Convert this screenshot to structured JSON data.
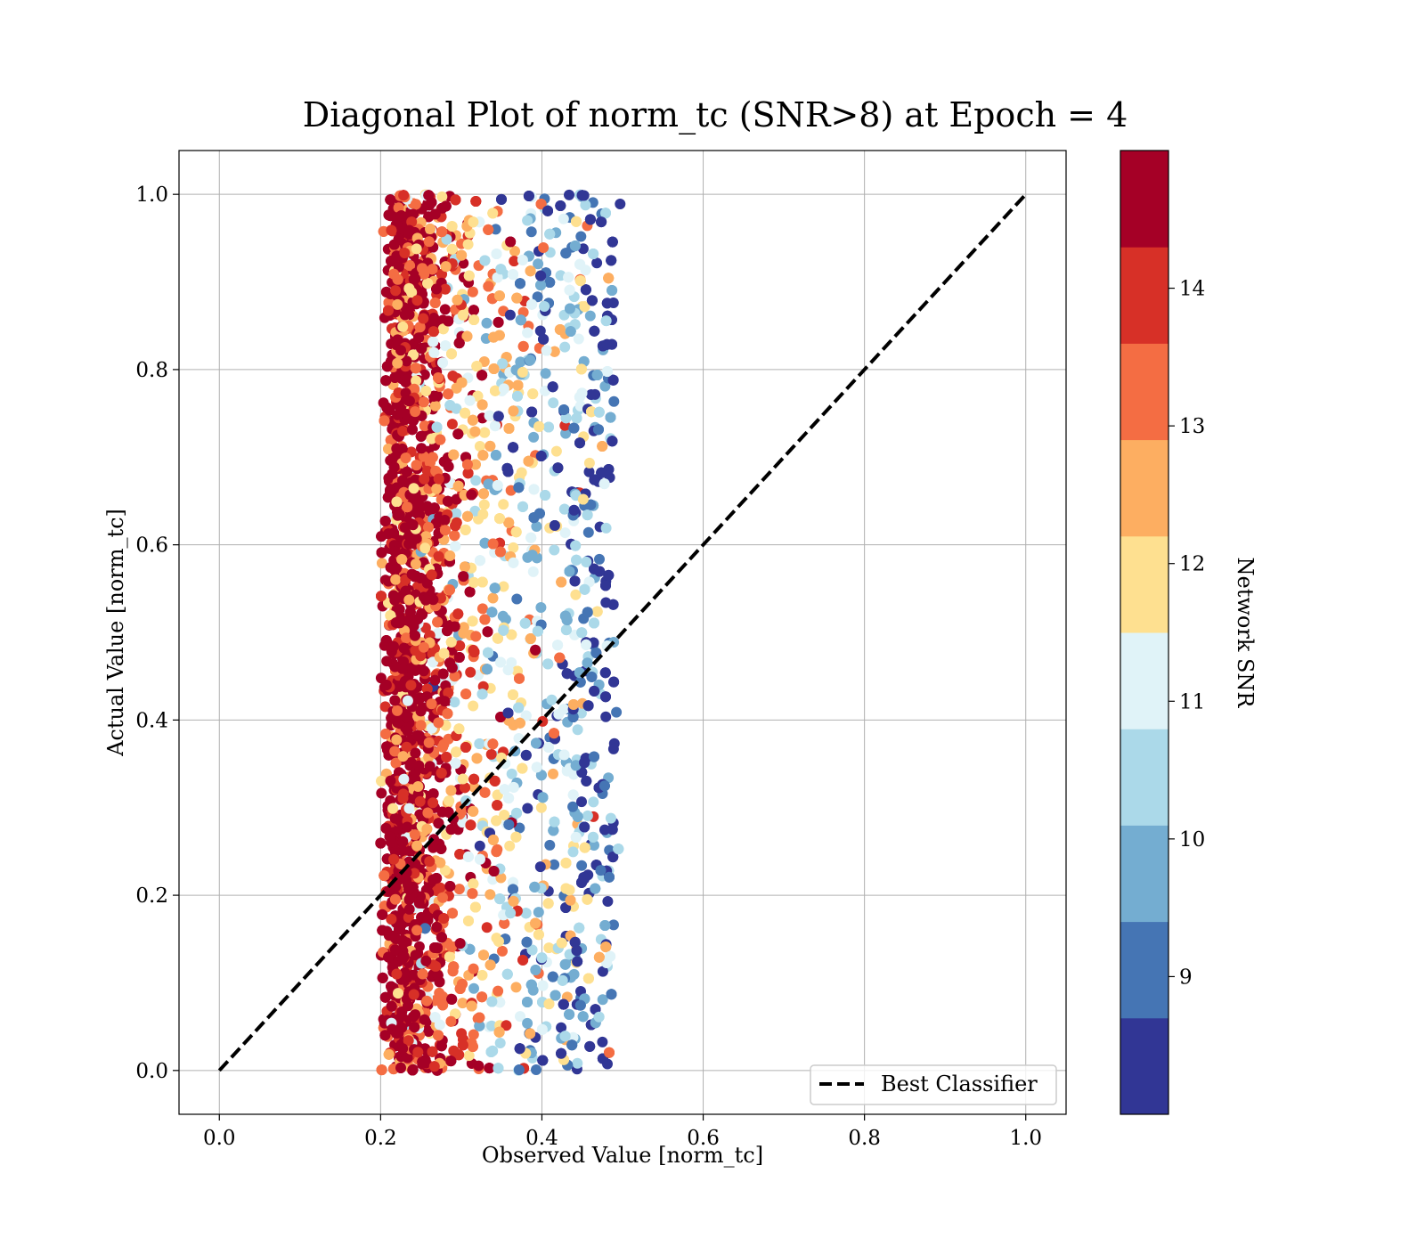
{
  "chart_data": {
    "type": "scatter",
    "title": "Diagonal Plot of norm_tc (SNR>8) at Epoch = 4",
    "xlabel": "Observed Value [norm_tc]",
    "ylabel": "Actual Value [norm_tc]",
    "xlim": [
      -0.05,
      1.05
    ],
    "ylim": [
      -0.05,
      1.05
    ],
    "xticks": [
      "0.0",
      "0.2",
      "0.4",
      "0.6",
      "0.8",
      "1.0"
    ],
    "yticks": [
      "0.0",
      "0.2",
      "0.4",
      "0.6",
      "0.8",
      "1.0"
    ],
    "grid": true,
    "legend": {
      "position": "lower-right",
      "entries": [
        "Best Classifier"
      ]
    },
    "reference_line": {
      "label": "Best Classifier",
      "x": [
        0.0,
        1.0
      ],
      "y": [
        0.0,
        1.0
      ],
      "style": "dashed",
      "color": "#000000"
    },
    "colorbar": {
      "label": "Network SNR",
      "range": [
        8.0,
        15.0
      ],
      "ticks": [
        "9",
        "10",
        "11",
        "12",
        "13",
        "14"
      ],
      "tick_values": [
        9,
        10,
        11,
        12,
        13,
        14
      ],
      "colors": [
        "#313695",
        "#4575b4",
        "#74add1",
        "#abd9e9",
        "#e0f3f8",
        "#fee090",
        "#fdae61",
        "#f46d43",
        "#d73027",
        "#a50026"
      ]
    },
    "series": [
      {
        "x_range": [
          0.17,
          0.53
        ],
        "y_range": [
          0.0,
          1.0
        ],
        "snr_by_x": [
          {
            "x": 0.21,
            "snr": 14.9
          },
          {
            "x": 0.27,
            "snr": 14.2
          },
          {
            "x": 0.32,
            "snr": 12.5
          },
          {
            "x": 0.38,
            "snr": 10.8
          },
          {
            "x": 0.45,
            "snr": 9.8
          },
          {
            "x": 0.5,
            "snr": 9.2
          }
        ]
      }
    ]
  }
}
